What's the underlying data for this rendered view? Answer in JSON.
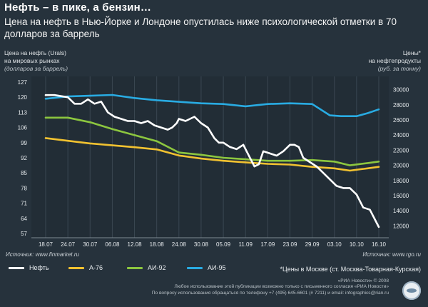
{
  "header": {
    "title": "Нефть – в пике, а бензин…",
    "subtitle": "Цена на нефть в Нью-Йорке и Лондоне опустилась ниже психологической отметки в 70 долларов за баррель"
  },
  "axes": {
    "left_label": "Цена на нефть (Urals)",
    "left_label2": "на мировых рынках",
    "left_unit": "(долларов за баррель)",
    "right_label": "Цены*",
    "right_label2": "на нефтепродукты",
    "right_unit": "(руб. за тонну)"
  },
  "sources": {
    "left": "Источник: www.finmarket.ru",
    "right": "Источник: www.rgo.ru"
  },
  "legend": {
    "oil": "Нефть",
    "a76": "А-76",
    "ai92": "АИ-92",
    "ai95": "АИ-95",
    "note": "*Цены в Москве (ст. Москва-Товарная-Курская)"
  },
  "footer": {
    "line1": "«РИА Новости» © 2008",
    "line2": "Любое использование этой публикации возможно только с письменного согласия «РИА Новости»",
    "line3": "По вопросу использования обращаться по телефону +7 (495) 645-6601 (# 7211) и email: infographics@rian.ru"
  },
  "colors": {
    "background": "#26323c",
    "oil": "#ffffff",
    "a76": "#f2c230",
    "ai92": "#8cc63f",
    "ai95": "#29abe2"
  },
  "chart_data": {
    "type": "line",
    "x_ticks": [
      "18.07",
      "24.07",
      "30.07",
      "06.08",
      "12.08",
      "18.08",
      "24.08",
      "30.08",
      "05.09",
      "11.09",
      "17.09",
      "23.09",
      "29.09",
      "03.10",
      "10.10",
      "16.10"
    ],
    "left_axis": {
      "ticks": [
        127,
        120,
        113,
        106,
        99,
        92,
        85,
        78,
        71,
        64,
        57
      ],
      "ylim": [
        57,
        127
      ]
    },
    "right_axis": {
      "ticks": [
        30000,
        28000,
        26000,
        24000,
        22000,
        20000,
        18000,
        16000,
        14000,
        12000
      ],
      "ylim": [
        11000,
        31000
      ]
    },
    "series": [
      {
        "name": "Нефть",
        "axis": "left",
        "x": [
          0,
          0.4,
          1,
          1.3,
          1.6,
          1.9,
          2.2,
          2.5,
          2.8,
          3.1,
          3.4,
          3.7,
          4.0,
          4.3,
          4.6,
          4.9,
          5.2,
          5.5,
          5.7,
          5.9,
          6.0,
          6.3,
          6.7,
          7.0,
          7.3,
          7.6,
          7.8,
          8.0,
          8.3,
          8.6,
          8.9,
          9.2,
          9.4,
          9.6,
          9.8,
          10.1,
          10.4,
          10.7,
          11.0,
          11.2,
          11.4,
          11.6,
          11.9,
          12.2,
          12.5,
          12.8,
          13.1,
          13.4,
          13.7,
          14.0,
          14.3,
          14.6,
          14.9,
          15.0
        ],
        "values": [
          121,
          121,
          120,
          117,
          117,
          119,
          117,
          118,
          113,
          111,
          110,
          109,
          109,
          108,
          109,
          107,
          106,
          105,
          106,
          108,
          110,
          109,
          111,
          108,
          106,
          101,
          99,
          99,
          97,
          96,
          98,
          92,
          88,
          89,
          95,
          94,
          93,
          95,
          98,
          98,
          97,
          92,
          90,
          88,
          85,
          82,
          79,
          78,
          78,
          75,
          69,
          68,
          62,
          60
        ]
      },
      {
        "name": "А-76",
        "axis": "right",
        "x": [
          0,
          2,
          4,
          5,
          6,
          7,
          8,
          9,
          10,
          11,
          12,
          13,
          13.7,
          14.5,
          15
        ],
        "values": [
          23600,
          22900,
          22400,
          22100,
          21300,
          20900,
          20600,
          20400,
          20200,
          20100,
          19800,
          19600,
          19300,
          19600,
          19800
        ]
      },
      {
        "name": "АИ-92",
        "axis": "right",
        "x": [
          0,
          1,
          2,
          3,
          4,
          5,
          6,
          7,
          8,
          9,
          10,
          11,
          12,
          13,
          13.7,
          14.5,
          15
        ],
        "values": [
          26300,
          26300,
          25700,
          24800,
          24000,
          23200,
          21700,
          21400,
          21000,
          20800,
          20600,
          20600,
          20700,
          20500,
          20000,
          20300,
          20500
        ]
      },
      {
        "name": "АИ-95",
        "axis": "right",
        "x": [
          0,
          1,
          2,
          3,
          4,
          5,
          6,
          7,
          8,
          9,
          10,
          11,
          12,
          12.8,
          13.3,
          14,
          14.5,
          15
        ],
        "values": [
          28800,
          29100,
          29200,
          29300,
          28900,
          28600,
          28400,
          28200,
          28100,
          27800,
          28100,
          28200,
          28100,
          26600,
          26500,
          26500,
          26900,
          27400
        ]
      }
    ]
  }
}
